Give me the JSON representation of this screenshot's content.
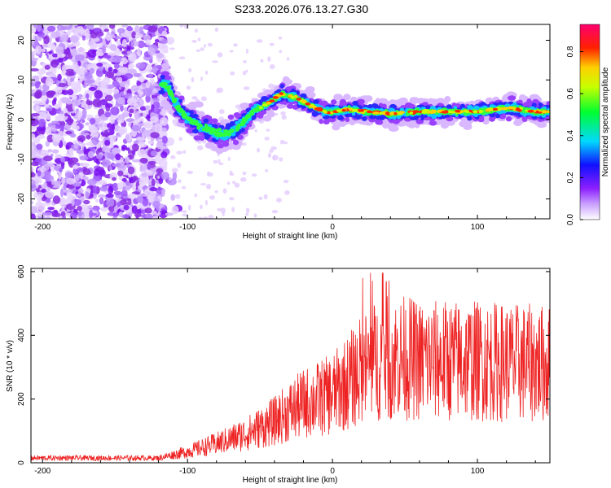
{
  "title": "S233.2026.076.13.27.G30",
  "chart_data": [
    {
      "type": "heatmap",
      "title": "S233.2026.076.13.27.G30",
      "xlabel": "Height of straight line (km)",
      "ylabel": "Frequency (Hz)",
      "xlim": [
        -208,
        150
      ],
      "ylim": [
        -25,
        24
      ],
      "xticks": [
        -200,
        -100,
        0,
        100
      ],
      "yticks": [
        -20,
        -10,
        0,
        10,
        20
      ],
      "xtick_labels": [
        "-200",
        "-100",
        "0",
        "100"
      ],
      "ytick_labels": [
        "-20",
        "-10",
        "0",
        "10",
        "20"
      ],
      "ridge": {
        "x": [
          -115,
          -105,
          -95,
          -85,
          -75,
          -65,
          -55,
          -45,
          -35,
          -25,
          -15,
          -5,
          0,
          10,
          25,
          40,
          60,
          80,
          100,
          120,
          140,
          150
        ],
        "y": [
          9,
          2,
          -1,
          -2.5,
          -4,
          -2,
          2,
          4,
          6.5,
          5.5,
          3.5,
          2,
          2,
          2.5,
          2,
          1.5,
          2,
          2,
          2,
          3,
          2,
          2
        ]
      },
      "colorbar": {
        "label": "Normalized spectral amplitude",
        "range": [
          0,
          0.93
        ],
        "ticks": [
          0.0,
          0.2,
          0.4,
          0.6,
          0.8
        ],
        "tick_labels": [
          "0.0",
          "0.2",
          "0.4",
          "0.6",
          "0.8"
        ]
      }
    },
    {
      "type": "line",
      "xlabel": "Height of straight line (km)",
      "ylabel": "SNR (10 * v/v)",
      "xlim": [
        -208,
        150
      ],
      "ylim": [
        0,
        610
      ],
      "xticks": [
        -200,
        -100,
        0,
        100
      ],
      "yticks": [
        0,
        200,
        400,
        600
      ],
      "xtick_labels": [
        "-200",
        "-100",
        "0",
        "100"
      ],
      "ytick_labels": [
        "0",
        "200",
        "400",
        "600"
      ],
      "color": "#ee2222",
      "envelope": {
        "x": [
          -208,
          -120,
          -110,
          -100,
          -80,
          -60,
          -40,
          -30,
          -20,
          -10,
          0,
          10,
          20,
          30,
          40,
          50,
          60,
          80,
          100,
          120,
          150
        ],
        "y": [
          15,
          15,
          25,
          35,
          60,
          90,
          130,
          160,
          185,
          200,
          215,
          250,
          290,
          320,
          330,
          330,
          320,
          320,
          320,
          315,
          310
        ]
      }
    }
  ]
}
